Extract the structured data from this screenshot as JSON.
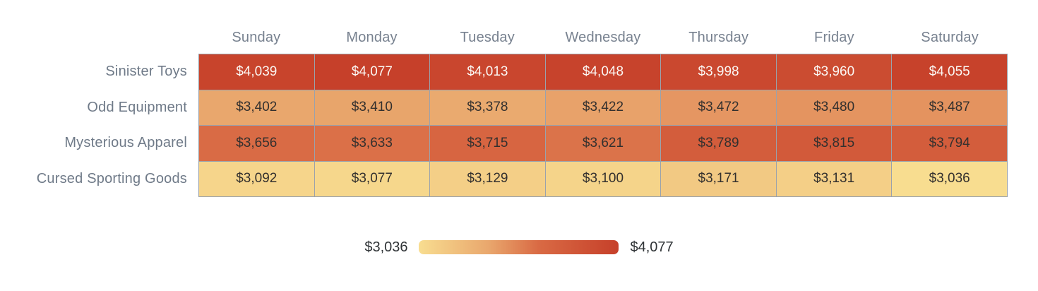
{
  "chart_data": {
    "type": "heatmap",
    "columns": [
      "Sunday",
      "Monday",
      "Tuesday",
      "Wednesday",
      "Thursday",
      "Friday",
      "Saturday"
    ],
    "rows": [
      "Sinister Toys",
      "Odd Equipment",
      "Mysterious Apparel",
      "Cursed Sporting Goods"
    ],
    "values": [
      [
        4039,
        4077,
        4013,
        4048,
        3998,
        3960,
        4055
      ],
      [
        3402,
        3410,
        3378,
        3422,
        3472,
        3480,
        3487
      ],
      [
        3656,
        3633,
        3715,
        3621,
        3789,
        3815,
        3794
      ],
      [
        3092,
        3077,
        3129,
        3100,
        3171,
        3131,
        3036
      ]
    ],
    "value_prefix": "$",
    "min": 3036,
    "max": 4077,
    "legend": {
      "min_label": "$3,036",
      "max_label": "$4,077",
      "position": "bottom-center"
    },
    "colorscale": [
      {
        "t": 0.0,
        "color": "#f8dd90"
      },
      {
        "t": 0.35,
        "color": "#e9a76d"
      },
      {
        "t": 0.6,
        "color": "#d96a44"
      },
      {
        "t": 1.0,
        "color": "#c6402a"
      }
    ],
    "grid": true
  },
  "colors": {
    "background": "#ffffff",
    "grid_border": "#9aa2ac",
    "header_text": "#77818f",
    "row_label_text": "#6f7a88",
    "legend_text": "#2f3336",
    "cell_text_dark": "#33302e",
    "cell_text_light": "#fbf7f3",
    "light_text_threshold": 0.85
  }
}
